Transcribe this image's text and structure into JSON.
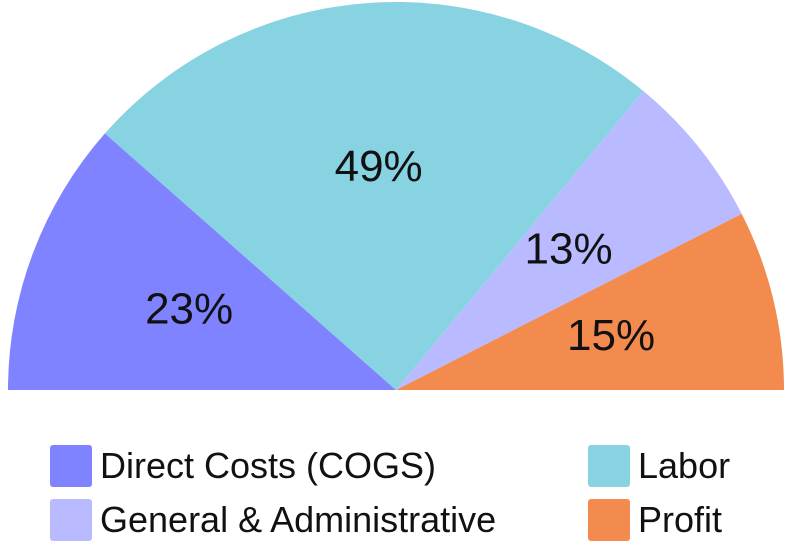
{
  "chart_data": {
    "type": "pie",
    "title": "",
    "variant": "semi-circle",
    "legend_position": "bottom",
    "slices": [
      {
        "name": "Direct Costs (COGS)",
        "value": 23,
        "label": "23%",
        "color": "#7f83ff"
      },
      {
        "name": "Labor",
        "value": 49,
        "label": "49%",
        "color": "#87d3e2"
      },
      {
        "name": "General & Administrative",
        "value": 13,
        "label": "13%",
        "color": "#b9baff"
      },
      {
        "name": "Profit",
        "value": 15,
        "label": "15%",
        "color": "#f38b4f"
      }
    ]
  }
}
